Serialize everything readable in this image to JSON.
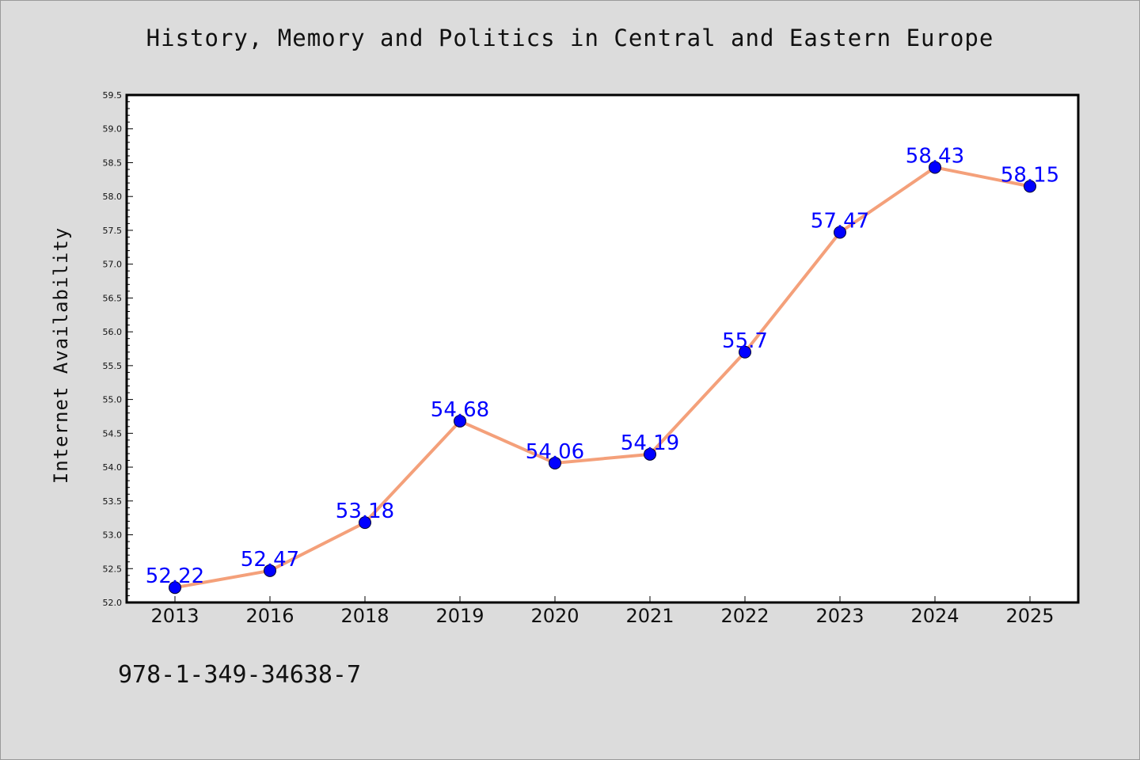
{
  "chart_data": {
    "type": "line",
    "title": "History, Memory and Politics in Central and Eastern Europe",
    "ylabel": "Internet Availability",
    "xlabel": "",
    "categories": [
      "2013",
      "2016",
      "2018",
      "2019",
      "2020",
      "2021",
      "2022",
      "2023",
      "2024",
      "2025"
    ],
    "values": [
      52.22,
      52.47,
      53.18,
      54.68,
      54.06,
      54.19,
      55.7,
      57.47,
      58.43,
      58.15
    ],
    "data_labels": [
      "52.22",
      "52.47",
      "53.18",
      "54.68",
      "54.06",
      "54.19",
      "55.7",
      "57.47",
      "58.43",
      "58.15"
    ],
    "ylim": [
      52.0,
      59.5
    ],
    "yticks": [
      "52.0",
      "52.5",
      "53.0",
      "53.5",
      "54.0",
      "54.5",
      "55.0",
      "55.5",
      "56.0",
      "56.5",
      "57.0",
      "57.5",
      "58.0",
      "58.5",
      "59.0",
      "59.5"
    ],
    "grid": false,
    "line_color": "#f4a07a",
    "marker_color": "#0000ff",
    "label_color": "#0000ff"
  },
  "footer": {
    "isbn": "978-1-349-34638-7"
  }
}
